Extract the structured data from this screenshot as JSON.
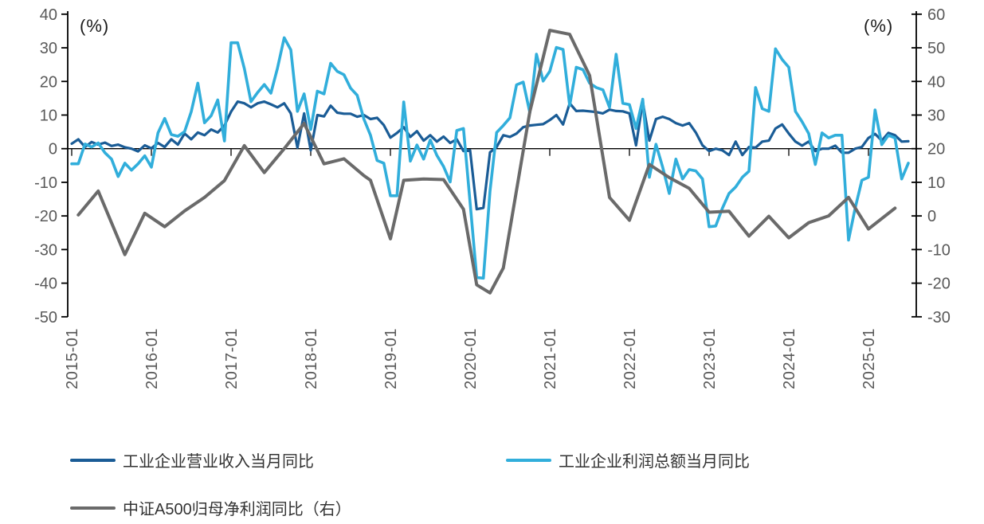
{
  "chart_data": {
    "type": "line",
    "title": "",
    "grid": false,
    "legend_position": "bottom",
    "x_unit": "month",
    "x_range": [
      "2015-01",
      "2025-07"
    ],
    "x_tick_labels": [
      "2015-01",
      "2016-01",
      "2017-01",
      "2018-01",
      "2019-01",
      "2020-01",
      "2021-01",
      "2022-01",
      "2023-01",
      "2024-01",
      "2025-01"
    ],
    "axes": {
      "left": {
        "unit_label": "(%)",
        "min": -50,
        "max": 40,
        "step": 10,
        "tick_labels": [
          "40",
          "30",
          "20",
          "10",
          "0",
          "-10",
          "-20",
          "-30",
          "-40",
          "-50"
        ]
      },
      "right": {
        "unit_label": "(%)",
        "min": -30,
        "max": 60,
        "step": 10,
        "tick_labels": [
          "60",
          "50",
          "40",
          "30",
          "20",
          "10",
          "0",
          "-10",
          "-20",
          "-30"
        ]
      }
    },
    "series": [
      {
        "name": "工业企业营业收入当月同比",
        "axis": "left",
        "color": "#1A5C96",
        "frequency": "monthly",
        "values": [
          1.5,
          2.8,
          0.5,
          2.0,
          1.2,
          1.8,
          0.8,
          1.2,
          0.4,
          0.0,
          -0.8,
          1.0,
          0.1,
          1.7,
          0.5,
          2.8,
          1.2,
          4.5,
          2.8,
          4.8,
          4.0,
          5.7,
          4.8,
          6.9,
          11.0,
          14.0,
          13.5,
          12.3,
          13.5,
          14.0,
          13.2,
          12.3,
          13.5,
          10.5,
          0.3,
          10.5,
          -0.5,
          10.0,
          9.6,
          12.8,
          10.7,
          10.4,
          10.4,
          9.5,
          10.0,
          8.8,
          9.2,
          7.0,
          3.3,
          4.7,
          6.4,
          3.5,
          5.2,
          2.4,
          4.0,
          2.1,
          3.6,
          1.7,
          2.8,
          -0.7,
          -0.5,
          -18.0,
          -17.6,
          -1.1,
          0.5,
          4.0,
          3.5,
          4.5,
          6.4,
          6.9,
          7.1,
          7.3,
          8.5,
          10.0,
          7.2,
          13.5,
          11.2,
          11.3,
          11.1,
          10.9,
          10.5,
          11.6,
          11.2,
          11.1,
          10.5,
          1.0,
          14.0,
          2.4,
          8.8,
          9.5,
          8.8,
          7.6,
          6.9,
          7.6,
          4.8,
          1.0,
          -0.7,
          0.0,
          -0.5,
          -1.9,
          2.1,
          -1.9,
          0.5,
          0.3,
          2.1,
          2.4,
          6.0,
          7.2,
          4.5,
          2.1,
          0.9,
          2.1,
          -0.7,
          0.0,
          0.0,
          0.9,
          -1.2,
          -1.2,
          0.0,
          0.5,
          3.2,
          4.4,
          2.4,
          4.7,
          4.0,
          2.1,
          2.2
        ]
      },
      {
        "name": "工业企业利润总额当月同比",
        "axis": "left",
        "color": "#31AEDB",
        "frequency": "monthly",
        "values": [
          -4.5,
          -4.5,
          1.4,
          0.5,
          1.7,
          -1.2,
          -3.1,
          -8.3,
          -4.3,
          -6.4,
          -4.5,
          -2.1,
          -5.5,
          4.7,
          9.0,
          4.2,
          3.7,
          5.1,
          11.0,
          19.5,
          7.7,
          9.8,
          14.5,
          2.3,
          31.5,
          31.5,
          23.8,
          14.0,
          16.7,
          19.1,
          16.5,
          24.0,
          33.0,
          29.4,
          11.1,
          16.3,
          5.7,
          17.1,
          16.3,
          25.4,
          23.0,
          22.0,
          18.0,
          15.9,
          8.8,
          4.0,
          -3.5,
          -4.3,
          -14.0,
          -14.0,
          13.9,
          -3.7,
          1.1,
          -3.1,
          2.6,
          -2.0,
          -5.3,
          -9.9,
          5.4,
          6.0,
          -16.0,
          -38.3,
          -38.5,
          -12.6,
          4.8,
          6.9,
          9.2,
          19.0,
          19.8,
          10.7,
          28.1,
          20.1,
          23.0,
          30.1,
          29.5,
          12.8,
          24.2,
          23.5,
          19.5,
          18.2,
          17.5,
          12.3,
          28.1,
          13.5,
          13.1,
          6.0,
          14.7,
          -8.5,
          1.3,
          -5.5,
          -13.3,
          -3.1,
          -9.0,
          -6.2,
          -6.6,
          -9.0,
          -23.2,
          -23.0,
          -17.7,
          -13.3,
          -11.4,
          -8.5,
          -6.7,
          18.2,
          11.9,
          11.1,
          29.7,
          26.5,
          24.2,
          11.1,
          8.0,
          4.5,
          -4.7,
          4.7,
          3.2,
          4.0,
          4.0,
          -27.2,
          -17.7,
          -9.4,
          -8.5,
          11.5,
          1.2,
          4.0,
          3.2,
          -9.0,
          -4.3
        ]
      },
      {
        "name": "中证A500归母净利润同比（右）",
        "axis": "right",
        "color": "#6A6A6A",
        "frequency": "quarterly",
        "points": [
          [
            1,
            0.3
          ],
          [
            4,
            7.4
          ],
          [
            8,
            -11.5
          ],
          [
            11,
            0.8
          ],
          [
            14,
            -3.2
          ],
          [
            17,
            1.5
          ],
          [
            20,
            5.5
          ],
          [
            23,
            10.5
          ],
          [
            26,
            20.9
          ],
          [
            29,
            12.9
          ],
          [
            32,
            20.0
          ],
          [
            35,
            27.5
          ],
          [
            38,
            15.5
          ],
          [
            41,
            17.0
          ],
          [
            44,
            12.0
          ],
          [
            45,
            10.6
          ],
          [
            48,
            -6.8
          ],
          [
            50,
            10.6
          ],
          [
            53,
            11.0
          ],
          [
            56,
            10.8
          ],
          [
            59,
            2.0
          ],
          [
            61,
            -20.5
          ],
          [
            63,
            -22.9
          ],
          [
            65,
            -15.5
          ],
          [
            69,
            31.0
          ],
          [
            72,
            55.2
          ],
          [
            75,
            54.0
          ],
          [
            78,
            41.8
          ],
          [
            81,
            5.5
          ],
          [
            84,
            -1.3
          ],
          [
            87,
            15.3
          ],
          [
            90,
            11.4
          ],
          [
            93,
            8.2
          ],
          [
            96,
            1.1
          ],
          [
            99,
            1.4
          ],
          [
            102,
            -6.0
          ],
          [
            105,
            -0.1
          ],
          [
            108,
            -6.5
          ],
          [
            111,
            -2.0
          ],
          [
            114,
            0.0
          ],
          [
            117,
            5.5
          ],
          [
            120,
            -3.9
          ],
          [
            124,
            2.3
          ]
        ]
      }
    ],
    "style": {
      "axis_color": "#000000",
      "tick_label_color": "#595959",
      "legend_text_color": "#333333",
      "background": "#ffffff"
    }
  }
}
